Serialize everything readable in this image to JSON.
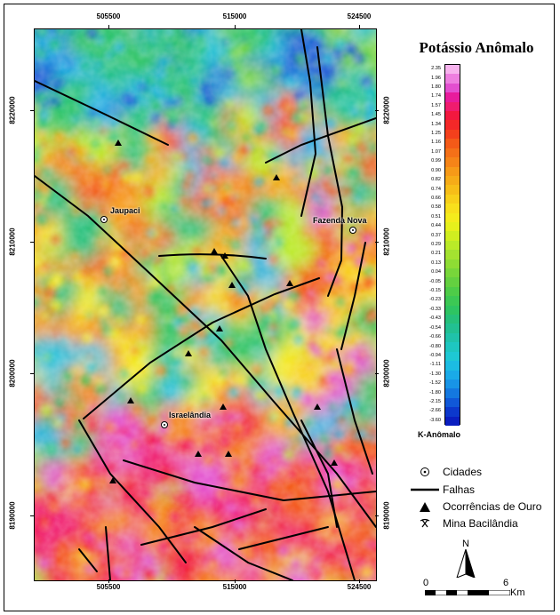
{
  "map": {
    "title": "Potássio Anômalo",
    "unit_label": "K-Anômalo",
    "x_ticks": [
      "505500",
      "515000",
      "524500"
    ],
    "y_ticks": [
      "8220000",
      "8210000",
      "8200000",
      "8190000"
    ],
    "cities": [
      {
        "name": "Jaupaci"
      },
      {
        "name": "Fazenda Nova"
      },
      {
        "name": "Israelândia"
      }
    ],
    "colorbar_values": [
      "2.35",
      "1.96",
      "1.80",
      "1.74",
      "1.57",
      "1.45",
      "1.34",
      "1.25",
      "1.16",
      "1.07",
      "0.99",
      "0.90",
      "0.82",
      "0.74",
      "0.66",
      "0.58",
      "0.51",
      "0.44",
      "0.37",
      "0.29",
      "0.21",
      "0.13",
      "0.04",
      "-0.05",
      "-0.15",
      "-0.23",
      "-0.33",
      "-0.43",
      "-0.54",
      "-0.66",
      "-0.80",
      "-0.94",
      "-1.11",
      "-1.30",
      "-1.52",
      "-1.80",
      "-2.15",
      "-2.66",
      "-3.60"
    ],
    "colorbar_colors": [
      "#f7b3ee",
      "#ee7fe0",
      "#e34fd0",
      "#e81c9c",
      "#f01c6e",
      "#f2183f",
      "#f42828",
      "#f4401c",
      "#f45a18",
      "#f47018",
      "#f58418",
      "#f69a18",
      "#f6ac18",
      "#f7be18",
      "#f8d01a",
      "#f8e01c",
      "#f4ec1c",
      "#e6f01c",
      "#d0ee20",
      "#baea28",
      "#a4e230",
      "#8edc34",
      "#78d63a",
      "#64d040",
      "#4ecc48",
      "#3cc854",
      "#2ec462",
      "#26c07a",
      "#22c092",
      "#20c2aa",
      "#1ec6c0",
      "#1ec8d4",
      "#1cbce2",
      "#1aaae8",
      "#1894e6",
      "#1478e0",
      "#1058d8",
      "#0c38cc",
      "#0a1ec0"
    ]
  },
  "legend": {
    "items": [
      {
        "symbol": "city-icon",
        "label": "Cidades"
      },
      {
        "symbol": "fault-line-icon",
        "label": "Falhas"
      },
      {
        "symbol": "triangle-icon",
        "label": "Ocorrências de Ouro"
      },
      {
        "symbol": "pickaxe-icon",
        "label": "Mina Bacilândia"
      }
    ],
    "north_label": "N",
    "scale": {
      "start": "0",
      "end": "6",
      "unit": "Km"
    }
  }
}
